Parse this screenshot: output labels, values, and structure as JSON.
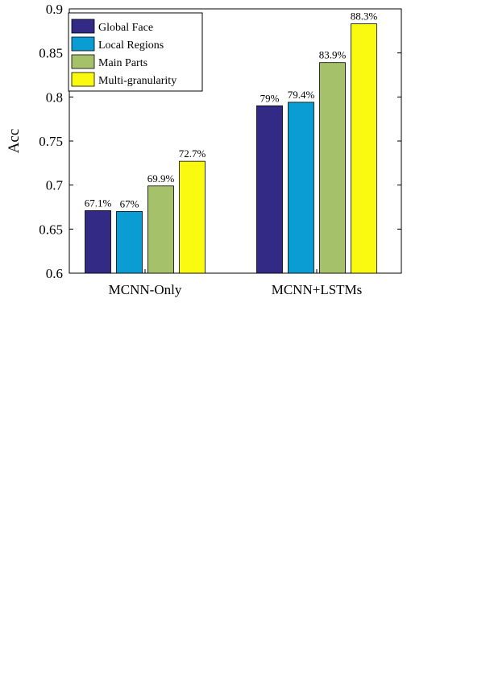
{
  "chart_data": {
    "type": "bar",
    "title": "",
    "xlabel": "",
    "ylabel": "Acc",
    "ylim": [
      0.6,
      0.9
    ],
    "yticks": [
      0.6,
      0.65,
      0.7,
      0.75,
      0.8,
      0.85,
      0.9
    ],
    "ytick_labels": [
      "0.6",
      "0.65",
      "0.7",
      "0.75",
      "0.8",
      "0.85",
      "0.9"
    ],
    "categories": [
      "MCNN-Only",
      "MCNN+LSTMs"
    ],
    "legend_position": "top-left",
    "grid": false,
    "series": [
      {
        "name": "Global Face",
        "color": "#332a86",
        "values": [
          0.671,
          0.79
        ],
        "labels": [
          "67.1%",
          "79%"
        ]
      },
      {
        "name": "Local Regions",
        "color": "#0a9dd4",
        "values": [
          0.67,
          0.794
        ],
        "labels": [
          "67%",
          "79.4%"
        ]
      },
      {
        "name": "Main Parts",
        "color": "#a5c16a",
        "values": [
          0.699,
          0.839
        ],
        "labels": [
          "69.9%",
          "83.9%"
        ]
      },
      {
        "name": "Multi-granularity",
        "color": "#f9fa0f",
        "values": [
          0.727,
          0.883
        ],
        "labels": [
          "72.7%",
          "88.3%"
        ]
      }
    ]
  }
}
